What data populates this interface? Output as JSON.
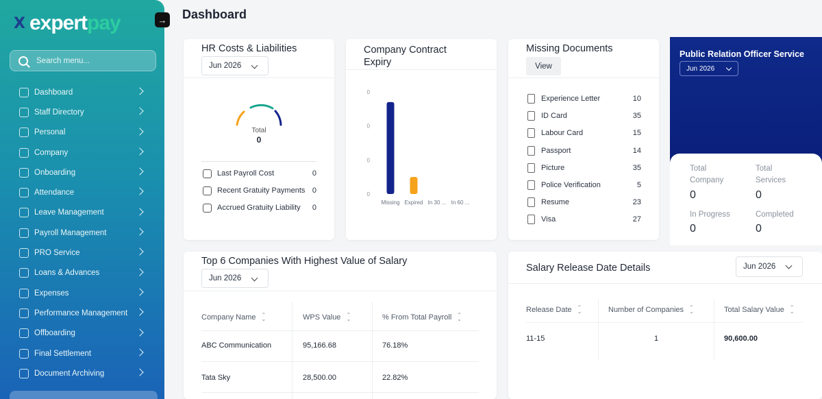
{
  "sidebar": {
    "logo": {
      "mark": "X",
      "text1": "expert",
      "text2": "pay"
    },
    "search_placeholder": "Search menu...",
    "items": [
      {
        "label": "Dashboard"
      },
      {
        "label": "Staff Directory"
      },
      {
        "label": "Personal"
      },
      {
        "label": "Company"
      },
      {
        "label": "Onboarding"
      },
      {
        "label": "Attendance"
      },
      {
        "label": "Leave Management"
      },
      {
        "label": "Payroll Management"
      },
      {
        "label": "PRO Service"
      },
      {
        "label": "Loans & Advances"
      },
      {
        "label": "Expenses"
      },
      {
        "label": "Performance Management"
      },
      {
        "label": "Offboarding"
      },
      {
        "label": "Final Settlement"
      },
      {
        "label": "Document Archiving"
      }
    ]
  },
  "header": {
    "title": "Dashboard"
  },
  "hr_costs": {
    "title": "HR Costs & Liabilities",
    "period": "Jun 2026",
    "gauge_label": "Total",
    "gauge_value": "0",
    "rows": [
      {
        "label": "Last Payroll Cost",
        "value": "0"
      },
      {
        "label": "Recent Gratuity Payments",
        "value": "0"
      },
      {
        "label": "Accrued Gratuity Liability",
        "value": "0"
      }
    ]
  },
  "contract_expiry": {
    "title": "Company Contract Expiry",
    "chart_data": {
      "type": "bar",
      "categories": [
        "Missing",
        "Expired",
        "In 30 ...",
        "In 60 ..."
      ],
      "values": [
        27,
        5,
        0,
        0
      ],
      "colors": [
        "#13238c",
        "#f5a31a",
        "#13238c",
        "#13238c"
      ],
      "ylim": [
        0,
        30
      ],
      "yticks": [
        "0",
        "10",
        "20",
        "30"
      ],
      "ytick_values": [
        0,
        10,
        20,
        30
      ],
      "yticks_display": [
        "0",
        "0",
        "0",
        "0"
      ]
    }
  },
  "missing_docs": {
    "title": "Missing Documents",
    "view_label": "View",
    "rows": [
      {
        "label": "Experience Letter",
        "value": "10"
      },
      {
        "label": "ID Card",
        "value": "35"
      },
      {
        "label": "Labour Card",
        "value": "15"
      },
      {
        "label": "Passport",
        "value": "14"
      },
      {
        "label": "Picture",
        "value": "35"
      },
      {
        "label": "Police Verification",
        "value": "5"
      },
      {
        "label": "Resume",
        "value": "23"
      },
      {
        "label": "Visa",
        "value": "27"
      }
    ]
  },
  "pro_service": {
    "title": "Public Relation Officer Service",
    "period": "Jun 2026",
    "stats": [
      {
        "label": "Total Company",
        "value": "0"
      },
      {
        "label": "Total Services",
        "value": "0"
      },
      {
        "label": "In Progress",
        "value": "0"
      },
      {
        "label": "Completed",
        "value": "0"
      }
    ]
  },
  "top_companies": {
    "title": "Top 6 Companies With Highest Value of Salary",
    "period": "Jun 2026",
    "columns": [
      "Company Name",
      "WPS Value",
      "% From Total Payroll"
    ],
    "rows": [
      [
        "ABC Communication",
        "95,166.68",
        "76.18%"
      ],
      [
        "Tata Sky",
        "28,500.00",
        "22.82%"
      ]
    ]
  },
  "salary_release": {
    "title": "Salary Release Date Details",
    "period": "Jun 2026",
    "columns": [
      "Release Date",
      "Number of Companies",
      "Total Salary Value"
    ],
    "rows": [
      [
        "11-15",
        "1",
        "90,600.00"
      ]
    ]
  },
  "colors": {
    "sidebar_top": "#20a8a0",
    "sidebar_bottom": "#1a63b7",
    "pro_bg": "#0f2a8a",
    "bar_primary": "#13238c",
    "bar_accent": "#f5a31a"
  }
}
